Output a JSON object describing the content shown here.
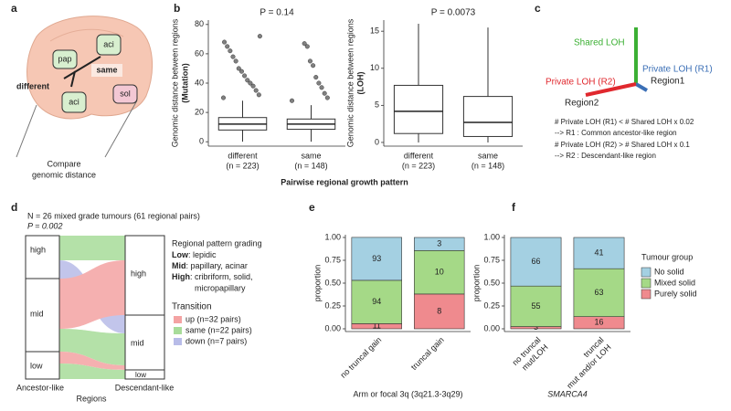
{
  "panel_labels": [
    "a",
    "b",
    "c",
    "d",
    "e",
    "f"
  ],
  "diagram_a": {
    "boxes": [
      "pap",
      "aci",
      "same",
      "sol",
      "aci"
    ],
    "different": "different",
    "caption": [
      "Compare",
      "genomic distance"
    ]
  },
  "panel_b_xlabel": "Pairwise regional growth pattern",
  "diagram_c": {
    "shared": "Shared LOH",
    "private_r1": "Private LOH (R1)",
    "region1": "Region1",
    "private_r2": "Private LOH (R2)",
    "region2": "Region2",
    "rules": [
      "# Private LOH (R1) < # Shared LOH x 0.02",
      " --> R1 : Common ancestor-like region",
      "# Private LOH (R2) > # Shared LOH x 0.1",
      " --> R2 : Descendant-like region"
    ]
  },
  "diagram_d": {
    "header": "N = 26 mixed grade tumours (61 regional pairs)",
    "pvalue": "P = 0.002",
    "left_levels": [
      "high",
      "mid",
      "low"
    ],
    "right_levels": [
      "high",
      "mid",
      "low"
    ],
    "x_labels": [
      "Ancestor-like",
      "Descendant-like"
    ],
    "x_title": "Regions",
    "grading_title": "Regional pattern grading",
    "grading": [
      {
        "term": "Low",
        "desc": ": lepidic"
      },
      {
        "term": "Mid",
        "desc": ": papillary, acinar"
      },
      {
        "term": "High",
        "desc": ": cribriform, solid,"
      }
    ],
    "grading_cont": "micropapillary",
    "transition_title": "Transition",
    "transitions": [
      {
        "name": "up (n=32 pairs)",
        "color": "#f4a3a3"
      },
      {
        "name": "same (n=22 pairs)",
        "color": "#a8dc9a"
      },
      {
        "name": "down (n=7 pairs)",
        "color": "#b8bce8"
      }
    ]
  },
  "chart_data": [
    {
      "type": "box",
      "title": "P = 0.14",
      "ylabel": [
        "Genomic distance between regions",
        "(Mutation)"
      ],
      "categories": [
        "different",
        "same"
      ],
      "category_notes": [
        "(n = 223)",
        "(n = 148)"
      ],
      "ylim": [
        -3,
        83
      ],
      "yticks": [
        0,
        20,
        40,
        60,
        80
      ],
      "point_color": "#555555",
      "boxes": [
        {
          "min": 0,
          "q1": 8,
          "median": 12,
          "q3": 16.5,
          "max": 28,
          "outliers": [
            30,
            32,
            35,
            38,
            40,
            42,
            45,
            48,
            50,
            55,
            58,
            62,
            65,
            68,
            72
          ]
        },
        {
          "min": 0,
          "q1": 8.5,
          "median": 12,
          "q3": 15.5,
          "max": 25,
          "outliers": [
            28,
            30,
            33,
            37,
            40,
            44,
            52,
            55,
            65,
            67
          ]
        }
      ]
    },
    {
      "type": "box",
      "title": "P = 0.0073",
      "ylabel": [
        "Genomic distance between regions",
        "(LOH)"
      ],
      "categories": [
        "different",
        "same"
      ],
      "category_notes": [
        "(n = 223)",
        "(n = 148)"
      ],
      "ylim": [
        -0.5,
        16.5
      ],
      "yticks": [
        0,
        5,
        10,
        15
      ],
      "point_color": "#555555",
      "boxes": [
        {
          "min": 0,
          "q1": 1.2,
          "median": 4.2,
          "q3": 7.7,
          "max": 16
        },
        {
          "min": 0,
          "q1": 0.8,
          "median": 2.7,
          "q3": 6.2,
          "max": 15.5
        }
      ]
    },
    {
      "type": "stacked",
      "ylabel": "proportion",
      "xlabel": "Arm or focal 3q (3q21.3-3q29)",
      "categories": [
        "no truncal gain",
        "truncal gain"
      ],
      "ylim": [
        -0.03,
        1.03
      ],
      "yticks": [
        {
          "value": 0,
          "label": "0.00"
        },
        {
          "value": 0.25,
          "label": "0.25"
        },
        {
          "value": 0.5,
          "label": "0.50"
        },
        {
          "value": 0.75,
          "label": "0.75"
        },
        {
          "value": 1,
          "label": "1.00"
        }
      ],
      "series": [
        {
          "color": "#ef8a8e",
          "values": [
            0.056,
            0.381
          ],
          "counts": [
            "11",
            "8"
          ]
        },
        {
          "color": "#a5d987",
          "values": [
            0.475,
            0.476
          ],
          "counts": [
            "94",
            "10"
          ]
        },
        {
          "color": "#a4d0e2",
          "values": [
            0.47,
            0.143
          ],
          "counts": [
            "93",
            "3"
          ]
        }
      ]
    },
    {
      "type": "stacked",
      "ylabel": "proportion",
      "xlabel": "SMARCA4",
      "xlabel_italic": true,
      "categories": [
        [
          "no truncal",
          "mut/LOH"
        ],
        [
          "truncal",
          "mut and/or LOH"
        ]
      ],
      "ylim": [
        -0.03,
        1.03
      ],
      "yticks": [
        {
          "value": 0,
          "label": "0.00"
        },
        {
          "value": 0.25,
          "label": "0.25"
        },
        {
          "value": 0.5,
          "label": "0.50"
        },
        {
          "value": 0.75,
          "label": "0.75"
        },
        {
          "value": 1,
          "label": "1.00"
        }
      ],
      "legend": "right",
      "legend_title": "Tumour group",
      "series": [
        {
          "name": "Purely solid",
          "color": "#ef8a8e",
          "values": [
            0.024,
            0.133
          ],
          "counts": [
            "3",
            "16"
          ]
        },
        {
          "name": "Mixed solid",
          "color": "#a5d987",
          "values": [
            0.444,
            0.525
          ],
          "counts": [
            "55",
            "63"
          ]
        },
        {
          "name": "No solid",
          "color": "#a4d0e2",
          "values": [
            0.532,
            0.342
          ],
          "counts": [
            "66",
            "41"
          ]
        }
      ]
    }
  ]
}
